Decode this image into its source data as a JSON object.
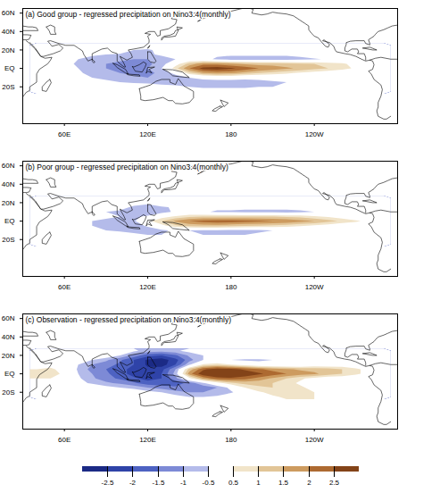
{
  "chart_data": [
    {
      "type": "contour",
      "title": "(a) Good group - regressed precipitation on Nino3.4(monthly)",
      "xlim": [
        30,
        300
      ],
      "ylim": [
        -60,
        65
      ],
      "xticks": [
        {
          "value": 60,
          "label": "60E"
        },
        {
          "value": 120,
          "label": "120E"
        },
        180,
        {
          "value": 240,
          "label": "120W"
        }
      ],
      "yticks": [
        {
          "value": 60,
          "label": "60N"
        },
        {
          "value": 40,
          "label": "40N"
        },
        {
          "value": 20,
          "label": "20N"
        },
        {
          "value": 0,
          "label": "EQ"
        },
        {
          "value": -20,
          "label": "20S"
        }
      ],
      "lon": [
        40,
        50,
        60,
        70,
        80,
        90,
        100,
        110,
        120,
        130,
        140,
        150,
        160,
        170,
        180,
        190,
        200,
        210,
        220,
        230,
        240,
        250,
        260,
        270,
        280,
        290
      ],
      "lat": [
        25,
        20,
        15,
        10,
        5,
        0,
        -5,
        -10,
        -15,
        -20,
        -25
      ],
      "values": [
        [
          0,
          0,
          0,
          0,
          0,
          0,
          0,
          0,
          0,
          0,
          0,
          0,
          0,
          0,
          0,
          0,
          0,
          0,
          0,
          0,
          0,
          0,
          0,
          0,
          0,
          0
        ],
        [
          0,
          0,
          0,
          0,
          0,
          0,
          0,
          -0.5,
          -0.6,
          -0.3,
          0,
          0,
          0,
          0,
          0,
          0,
          0,
          0,
          0,
          0,
          0,
          0,
          0,
          0,
          0,
          0
        ],
        [
          0,
          0,
          0,
          0,
          -0.4,
          -0.5,
          -0.6,
          -0.7,
          -0.6,
          -0.4,
          -0.2,
          0,
          -0.2,
          -0.4,
          -0.4,
          -0.4,
          -0.4,
          -0.4,
          -0.4,
          -0.3,
          0,
          0,
          0,
          0,
          0,
          0
        ],
        [
          0,
          0,
          -0.3,
          -0.5,
          -0.7,
          -0.8,
          -0.9,
          -1.0,
          -1.0,
          -0.8,
          -0.5,
          -0.2,
          -0.3,
          -0.6,
          -0.8,
          -0.8,
          -0.8,
          -0.8,
          -0.8,
          -0.7,
          -0.6,
          -0.4,
          -0.2,
          0,
          0,
          0
        ],
        [
          0,
          0,
          -0.3,
          -0.6,
          -0.8,
          -1.0,
          -1.1,
          -1.2,
          -1.1,
          -0.8,
          0.2,
          1.2,
          1.8,
          1.8,
          1.6,
          1.4,
          1.3,
          1.3,
          1.2,
          1.1,
          1.0,
          0.8,
          0.6,
          0.3,
          0,
          0
        ],
        [
          0.5,
          0.3,
          0,
          -0.5,
          -0.8,
          -1.0,
          -1.1,
          -1.2,
          -1.0,
          -0.5,
          0.8,
          2.0,
          2.7,
          2.8,
          2.6,
          2.3,
          2.0,
          1.8,
          1.6,
          1.4,
          1.2,
          1.0,
          0.7,
          0.4,
          0.2,
          0
        ],
        [
          0.3,
          0.2,
          0,
          -0.4,
          -0.7,
          -0.9,
          -1.0,
          -1.1,
          -1.1,
          -0.9,
          -0.3,
          0.8,
          1.5,
          1.7,
          1.6,
          1.3,
          1.0,
          0.8,
          0.6,
          0.4,
          0.2,
          0,
          0,
          0,
          0,
          0
        ],
        [
          0.2,
          0,
          0,
          -0.3,
          -0.5,
          -0.7,
          -0.8,
          -0.9,
          -1.0,
          -0.9,
          -0.8,
          -0.5,
          -0.3,
          -0.2,
          -0.2,
          -0.3,
          -0.3,
          -0.2,
          0,
          0,
          0,
          0,
          0,
          0,
          0,
          0
        ],
        [
          0,
          0,
          0,
          0,
          0,
          -0.3,
          -0.5,
          -0.6,
          -0.7,
          -0.7,
          -0.7,
          -0.8,
          -0.8,
          -0.8,
          -0.8,
          -0.8,
          -0.7,
          -0.6,
          -0.5,
          -0.3,
          0,
          0,
          0,
          0,
          0,
          0
        ],
        [
          0,
          0,
          0,
          0,
          0,
          0,
          0,
          0,
          0,
          -0.3,
          -0.4,
          -0.5,
          -0.6,
          -0.6,
          -0.6,
          -0.6,
          -0.5,
          -0.5,
          -0.4,
          -0.3,
          0,
          0,
          0,
          0,
          0,
          0
        ],
        [
          0,
          0,
          0,
          0,
          0,
          0,
          0,
          0,
          0,
          0,
          0,
          0,
          -0.2,
          -0.2,
          -0.2,
          -0.2,
          -0.2,
          0,
          0,
          0,
          0,
          0,
          0,
          0,
          0,
          0
        ]
      ]
    },
    {
      "type": "contour",
      "title": "(b) Poor group - regressed precipitation on Nino3.4(monthly)",
      "xlim": [
        30,
        300
      ],
      "ylim": [
        -60,
        65
      ],
      "xticks": [
        {
          "value": 60,
          "label": "60E"
        },
        {
          "value": 120,
          "label": "120E"
        },
        180,
        {
          "value": 240,
          "label": "120W"
        }
      ],
      "yticks": [
        {
          "value": 60,
          "label": "60N"
        },
        {
          "value": 40,
          "label": "40N"
        },
        {
          "value": 20,
          "label": "20N"
        },
        {
          "value": 0,
          "label": "EQ"
        },
        {
          "value": -20,
          "label": "20S"
        }
      ],
      "lon": [
        40,
        50,
        60,
        70,
        80,
        90,
        100,
        110,
        120,
        130,
        140,
        150,
        160,
        170,
        180,
        190,
        200,
        210,
        220,
        230,
        240,
        250,
        260,
        270,
        280,
        290
      ],
      "lat": [
        25,
        20,
        15,
        10,
        5,
        0,
        -5,
        -10,
        -15,
        -20,
        -25
      ],
      "values": [
        [
          0,
          0,
          0,
          0,
          0,
          0,
          0,
          0,
          0,
          0,
          0,
          0,
          0,
          0,
          0,
          0,
          0,
          0,
          0,
          0,
          0,
          0,
          0,
          0,
          0,
          0
        ],
        [
          0,
          0,
          0,
          0,
          0,
          0,
          0,
          -0.3,
          -0.4,
          0,
          0,
          0,
          0,
          0,
          0,
          0,
          0,
          0,
          0,
          0,
          0,
          0,
          0,
          0,
          0,
          0
        ],
        [
          0,
          0,
          0,
          0,
          0,
          0,
          -0.3,
          -0.6,
          -0.7,
          -0.6,
          -0.4,
          -0.2,
          0,
          -0.3,
          -0.3,
          -0.3,
          -0.3,
          -0.3,
          -0.3,
          -0.3,
          0,
          0,
          0,
          0,
          0,
          0
        ],
        [
          0,
          0,
          0,
          -0.3,
          -0.4,
          -0.5,
          -0.6,
          -0.8,
          -0.9,
          -0.7,
          -0.4,
          -0.2,
          -0.4,
          -0.6,
          -0.6,
          -0.7,
          -0.7,
          -0.7,
          -0.7,
          -0.6,
          -0.5,
          -0.3,
          0,
          0,
          0,
          0
        ],
        [
          0,
          0,
          0,
          0,
          -0.3,
          -0.4,
          -0.5,
          -0.6,
          -0.4,
          0.2,
          0.6,
          0.9,
          1.0,
          1.0,
          1.0,
          1.0,
          1.0,
          1.0,
          0.9,
          0.8,
          0.6,
          0.4,
          0.2,
          0,
          0,
          0
        ],
        [
          0,
          0,
          0,
          -0.3,
          -0.5,
          -0.6,
          -0.7,
          -0.6,
          0.3,
          1.0,
          1.6,
          2.0,
          2.2,
          2.3,
          2.3,
          2.2,
          2.1,
          2.0,
          1.9,
          1.7,
          1.5,
          1.2,
          0.9,
          0.6,
          0.3,
          0
        ],
        [
          0,
          0,
          0,
          -0.3,
          -0.5,
          -0.6,
          -0.8,
          -0.8,
          -0.4,
          0.3,
          0.9,
          1.2,
          1.3,
          1.3,
          1.2,
          1.1,
          1.0,
          0.9,
          0.8,
          0.6,
          0.4,
          0.2,
          0,
          0,
          0,
          0
        ],
        [
          0,
          0,
          0,
          0,
          -0.3,
          -0.5,
          -0.7,
          -0.8,
          -0.8,
          -0.6,
          -0.4,
          -0.5,
          -0.6,
          -0.6,
          -0.6,
          -0.6,
          -0.6,
          -0.5,
          -0.4,
          -0.3,
          0,
          0,
          0,
          0,
          0,
          0
        ],
        [
          0,
          0,
          0,
          0,
          0,
          0,
          0,
          -0.3,
          -0.5,
          -0.5,
          -0.4,
          -0.4,
          -0.5,
          -0.5,
          -0.5,
          -0.5,
          -0.4,
          -0.3,
          0,
          0,
          0,
          0,
          0,
          0,
          0,
          0
        ],
        [
          0,
          0,
          0,
          0,
          0,
          0,
          0,
          0,
          0,
          0,
          -0.2,
          -0.2,
          -0.3,
          -0.3,
          -0.3,
          -0.2,
          0,
          0,
          0,
          0,
          0,
          0,
          0,
          0,
          0,
          0
        ],
        [
          0,
          0,
          0,
          0,
          0,
          0,
          0,
          0,
          0,
          0,
          0,
          0,
          0,
          0,
          0,
          0,
          0,
          0,
          0,
          0,
          0,
          0,
          0,
          0,
          0,
          0
        ]
      ]
    },
    {
      "type": "contour",
      "title": "(c) Observation - regressed precipitation on Nino3.4(monthly)",
      "xlim": [
        30,
        300
      ],
      "ylim": [
        -60,
        65
      ],
      "xticks": [
        {
          "value": 60,
          "label": "60E"
        },
        {
          "value": 120,
          "label": "120E"
        },
        180,
        {
          "value": 240,
          "label": "120W"
        }
      ],
      "yticks": [
        {
          "value": 60,
          "label": "60N"
        },
        {
          "value": 40,
          "label": "40N"
        },
        {
          "value": 20,
          "label": "20N"
        },
        {
          "value": 0,
          "label": "EQ"
        },
        {
          "value": -20,
          "label": "20S"
        }
      ],
      "lon": [
        40,
        50,
        60,
        70,
        80,
        90,
        100,
        110,
        120,
        130,
        140,
        150,
        160,
        170,
        180,
        190,
        200,
        210,
        220,
        230,
        240,
        250,
        260,
        270,
        280,
        290
      ],
      "lat": [
        25,
        20,
        15,
        10,
        5,
        0,
        -5,
        -10,
        -15,
        -20,
        -25
      ],
      "values": [
        [
          0,
          0,
          0,
          0,
          0,
          0,
          0,
          -0.4,
          -0.7,
          -0.8,
          -0.6,
          -0.3,
          0,
          0,
          0,
          0,
          0,
          0,
          0,
          0,
          0,
          0,
          0,
          0,
          0,
          0
        ],
        [
          0,
          0,
          0,
          0,
          0,
          0,
          -0.5,
          -1.2,
          -1.8,
          -2.0,
          -1.6,
          -0.9,
          -0.5,
          -0.3,
          0,
          0,
          0,
          0,
          0,
          0,
          0,
          0,
          0,
          0,
          0,
          0
        ],
        [
          0,
          0,
          0,
          0,
          -0.5,
          -0.9,
          -1.4,
          -2.0,
          -2.6,
          -2.8,
          -2.2,
          -1.2,
          -0.5,
          -0.3,
          -0.5,
          -0.6,
          -0.6,
          -0.5,
          -0.4,
          -0.3,
          0,
          0,
          0,
          0,
          0,
          0
        ],
        [
          0,
          0.3,
          0.2,
          -0.5,
          -1.0,
          -1.3,
          -1.6,
          -2.0,
          -2.6,
          -2.8,
          -2.0,
          -0.6,
          0.6,
          0.8,
          0.5,
          0.2,
          -0.2,
          -0.3,
          -0.3,
          -0.3,
          0,
          0,
          0,
          0,
          0,
          0
        ],
        [
          0.5,
          0.6,
          0.3,
          -0.6,
          -1.2,
          -1.5,
          -1.8,
          -2.2,
          -2.4,
          -2.2,
          -1.0,
          1.2,
          2.4,
          2.8,
          2.7,
          2.4,
          2.1,
          1.8,
          1.6,
          1.4,
          1.3,
          1.2,
          1.0,
          0.6,
          0.3,
          0
        ],
        [
          0.6,
          0.7,
          0.4,
          -0.5,
          -1.0,
          -1.4,
          -1.8,
          -2.2,
          -2.5,
          -2.0,
          -0.8,
          1.8,
          2.9,
          3.2,
          3.1,
          2.9,
          2.6,
          2.3,
          2.0,
          1.8,
          1.6,
          1.3,
          1.0,
          0.6,
          0.3,
          0
        ],
        [
          0.5,
          0.5,
          0.2,
          -0.4,
          -0.9,
          -1.3,
          -1.6,
          -1.9,
          -2.2,
          -2.0,
          -1.2,
          0.3,
          1.6,
          2.3,
          2.4,
          2.2,
          1.8,
          1.4,
          1.0,
          0.6,
          0.3,
          0,
          0,
          0,
          0,
          0
        ],
        [
          0.3,
          0,
          0,
          -0.3,
          -0.6,
          -0.9,
          -1.1,
          -1.4,
          -1.8,
          -1.9,
          -1.8,
          -1.3,
          -0.6,
          0.2,
          0.9,
          1.2,
          1.2,
          1.0,
          0.7,
          0.4,
          0,
          0,
          0,
          0,
          0,
          0
        ],
        [
          0,
          0,
          0,
          0,
          0,
          -0.3,
          -0.5,
          -0.7,
          -1.0,
          -1.2,
          -1.4,
          -1.5,
          -1.3,
          -1.0,
          -0.3,
          0.5,
          0.9,
          1.0,
          0.9,
          0.6,
          0.3,
          0,
          0,
          0,
          0,
          0
        ],
        [
          0,
          0,
          0,
          0,
          0,
          0,
          0,
          0,
          -0.3,
          -0.5,
          -0.8,
          -1.0,
          -1.0,
          -0.9,
          -0.6,
          0,
          0.4,
          0.7,
          0.8,
          0.7,
          0.5,
          0.3,
          0,
          0,
          0,
          0
        ],
        [
          0,
          0,
          0,
          0,
          0,
          0,
          0,
          0,
          0,
          0,
          -0.3,
          -0.5,
          -0.5,
          -0.4,
          0,
          0,
          0.2,
          0.4,
          0.6,
          0.6,
          0.5,
          0.4,
          0.3,
          0,
          0,
          0
        ]
      ]
    }
  ],
  "colorbar": {
    "ticks": [
      -2.5,
      -2,
      -1.5,
      -1,
      -0.5,
      0.5,
      1,
      1.5,
      2,
      2.5
    ],
    "colors": [
      "#1b2a85",
      "#2f43a8",
      "#4d62c2",
      "#7d8ad6",
      "#b4bbea",
      "#ffffff",
      "#f1e4c9",
      "#e2c597",
      "#cd9b5f",
      "#ad6a31",
      "#834318"
    ]
  }
}
